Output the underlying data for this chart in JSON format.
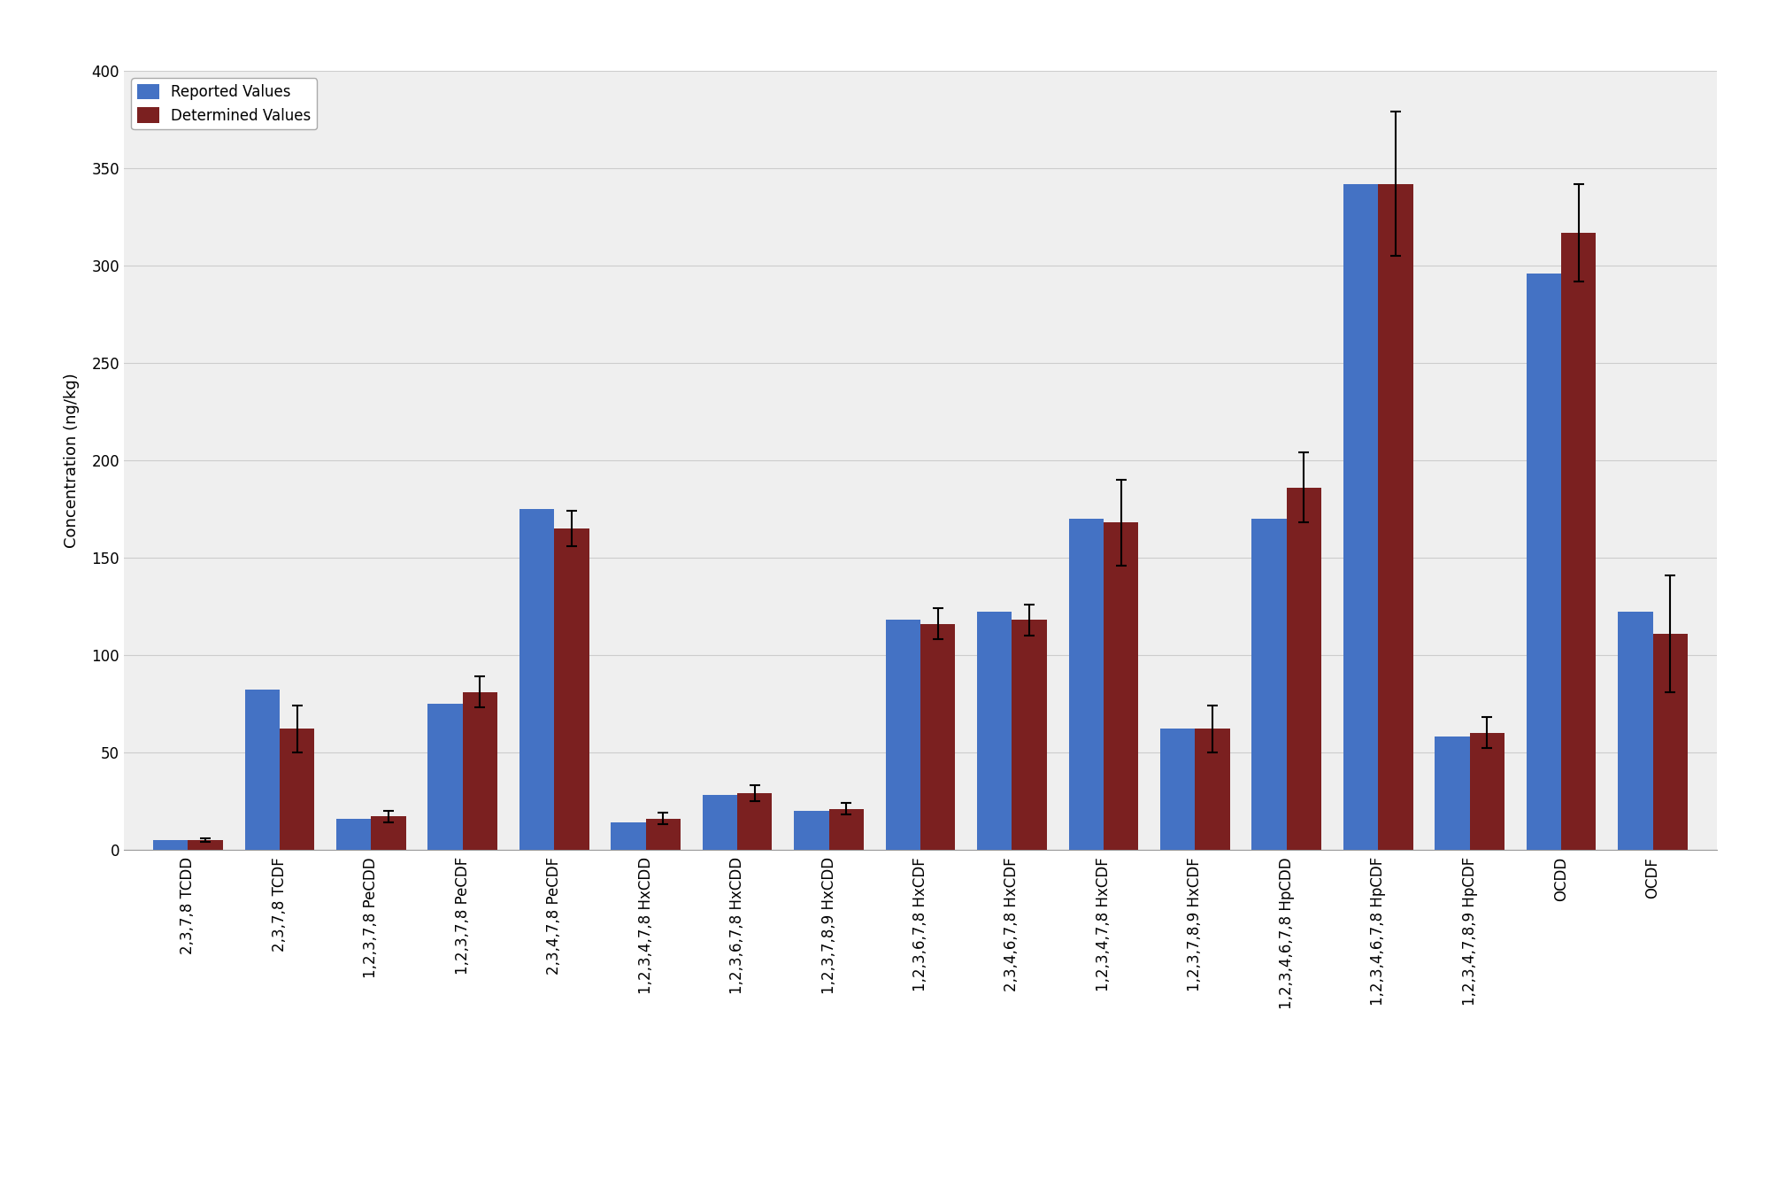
{
  "categories": [
    "2,3,7,8 TCDD",
    "2,3,7,8 TCDF",
    "1,2,3,7,8 PeCDD",
    "1,2,3,7,8 PeCDF",
    "2,3,4,7,8 PeCDF",
    "1,2,3,4,7,8 HxCDD",
    "1,2,3,6,7,8 HxCDD",
    "1,2,3,7,8,9 HxCDD",
    "1,2,3,6,7,8 HxCDF",
    "2,3,4,6,7,8 HxCDF",
    "1,2,3,4,7,8 HxCDF",
    "1,2,3,7,8,9 HxCDF",
    "1,2,3,4,6,7,8 HpCDD",
    "1,2,3,4,6,7,8 HpCDF",
    "1,2,3,4,7,8,9 HpCDF",
    "OCDD",
    "OCDF"
  ],
  "reported_values": [
    5,
    82,
    16,
    75,
    175,
    14,
    28,
    20,
    118,
    122,
    170,
    62,
    170,
    342,
    58,
    296,
    122
  ],
  "determined_values": [
    5,
    62,
    17,
    81,
    165,
    16,
    29,
    21,
    116,
    118,
    168,
    62,
    186,
    342,
    60,
    317,
    111
  ],
  "determined_errors": [
    1,
    12,
    3,
    8,
    9,
    3,
    4,
    3,
    8,
    8,
    22,
    12,
    18,
    37,
    8,
    25,
    30
  ],
  "reported_color": "#4472C4",
  "determined_color": "#7B2020",
  "ylabel": "Concentration (ng/kg)",
  "ylim": [
    0,
    400
  ],
  "yticks": [
    0,
    50,
    100,
    150,
    200,
    250,
    300,
    350,
    400
  ],
  "legend_reported": "Reported Values",
  "legend_determined": "Determined Values",
  "bg_color": "#FFFFFF",
  "plot_bg_color": "#EFEFEF",
  "grid_color": "#CCCCCC",
  "fig_width": 20.0,
  "fig_height": 13.33,
  "dpi": 100
}
